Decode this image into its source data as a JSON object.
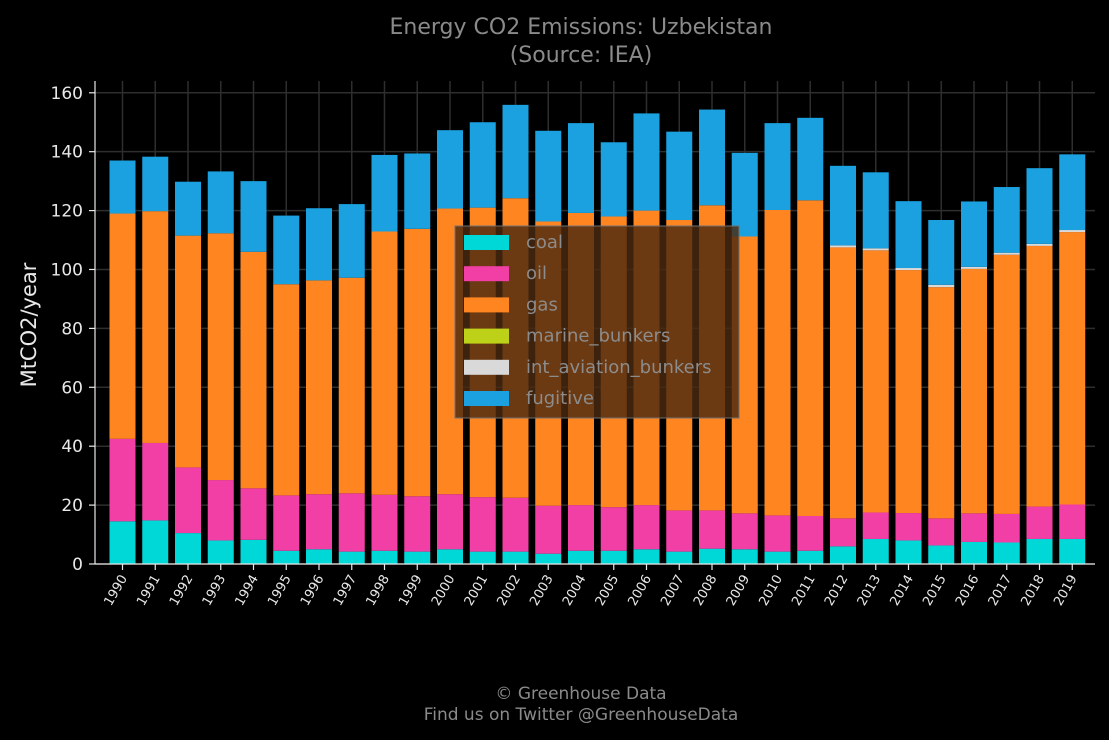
{
  "chart_data": {
    "type": "bar",
    "stacked": true,
    "title": "Energy CO2 Emissions: Uzbekistan",
    "subtitle": "(Source: IEA)",
    "ylabel": "MtCO2/year",
    "xlabel": "",
    "ylim": [
      0,
      164
    ],
    "yticks": [
      0,
      20,
      40,
      60,
      80,
      100,
      120,
      140,
      160
    ],
    "grid": true,
    "legend_position": "center",
    "categories": [
      "1990",
      "1991",
      "1992",
      "1993",
      "1994",
      "1995",
      "1996",
      "1997",
      "1998",
      "1999",
      "2000",
      "2001",
      "2002",
      "2003",
      "2004",
      "2005",
      "2006",
      "2007",
      "2008",
      "2009",
      "2010",
      "2011",
      "2012",
      "2013",
      "2014",
      "2015",
      "2016",
      "2017",
      "2018",
      "2019"
    ],
    "series": [
      {
        "name": "coal",
        "color": "#00d8d8",
        "values": [
          14.5,
          14.8,
          10.5,
          8,
          8.2,
          4.5,
          5,
          4.2,
          4.5,
          4.2,
          5,
          4.2,
          4.2,
          3.5,
          4.5,
          4.5,
          5,
          4.2,
          5.2,
          5,
          4.2,
          4.5,
          6,
          8.5,
          8,
          6.3,
          7.5,
          7.3,
          8.5,
          8.5
        ]
      },
      {
        "name": "oil",
        "color": "#f23fa5",
        "values": [
          28,
          26.3,
          22.3,
          20.5,
          17.5,
          18.8,
          18.7,
          19.8,
          19,
          18.8,
          18.7,
          18.5,
          18.3,
          16.3,
          15.5,
          14.8,
          15,
          14,
          13,
          12.2,
          12.3,
          11.8,
          9.5,
          9,
          9.3,
          9.2,
          9.7,
          9.7,
          11,
          11.7
        ]
      },
      {
        "name": "gas",
        "color": "#ff8520",
        "values": [
          76.5,
          78.7,
          78.7,
          83.8,
          80.3,
          71.7,
          72.6,
          73.2,
          89.4,
          90.8,
          97,
          98.3,
          101.7,
          96.5,
          99.2,
          98.7,
          100,
          98.6,
          103.6,
          94,
          103.7,
          107.2,
          92,
          89,
          82.5,
          78.5,
          83,
          88,
          88.5,
          92.5
        ]
      },
      {
        "name": "marine_bunkers",
        "color": "#bcd117",
        "values": [
          0,
          0,
          0,
          0,
          0,
          0,
          0,
          0,
          0,
          0,
          0,
          0,
          0,
          0,
          0,
          0,
          0,
          0,
          0,
          0,
          0,
          0,
          0,
          0,
          0,
          0,
          0,
          0,
          0,
          0
        ]
      },
      {
        "name": "int_aviation_bunkers",
        "color": "#d9d9d9",
        "values": [
          0,
          0,
          0,
          0,
          0,
          0,
          0,
          0,
          0,
          0,
          0,
          0,
          0,
          0,
          0,
          0,
          0,
          0,
          0,
          0,
          0,
          0,
          0.7,
          0.7,
          0.7,
          0.8,
          0.7,
          0.7,
          0.7,
          0.7
        ]
      },
      {
        "name": "fugitive",
        "color": "#1ba1e0",
        "values": [
          18,
          18.5,
          18.3,
          21,
          24,
          23.3,
          24.5,
          25,
          26,
          25.6,
          26.6,
          29,
          31.7,
          30.8,
          30.5,
          25.2,
          33,
          30,
          32.5,
          28.4,
          29.5,
          28,
          27,
          25.8,
          22.7,
          22,
          22.2,
          22.3,
          25.7,
          25.7
        ]
      }
    ]
  },
  "footer": {
    "line1": "© Greenhouse Data",
    "line2": "Find us on Twitter @GreenhouseData"
  }
}
